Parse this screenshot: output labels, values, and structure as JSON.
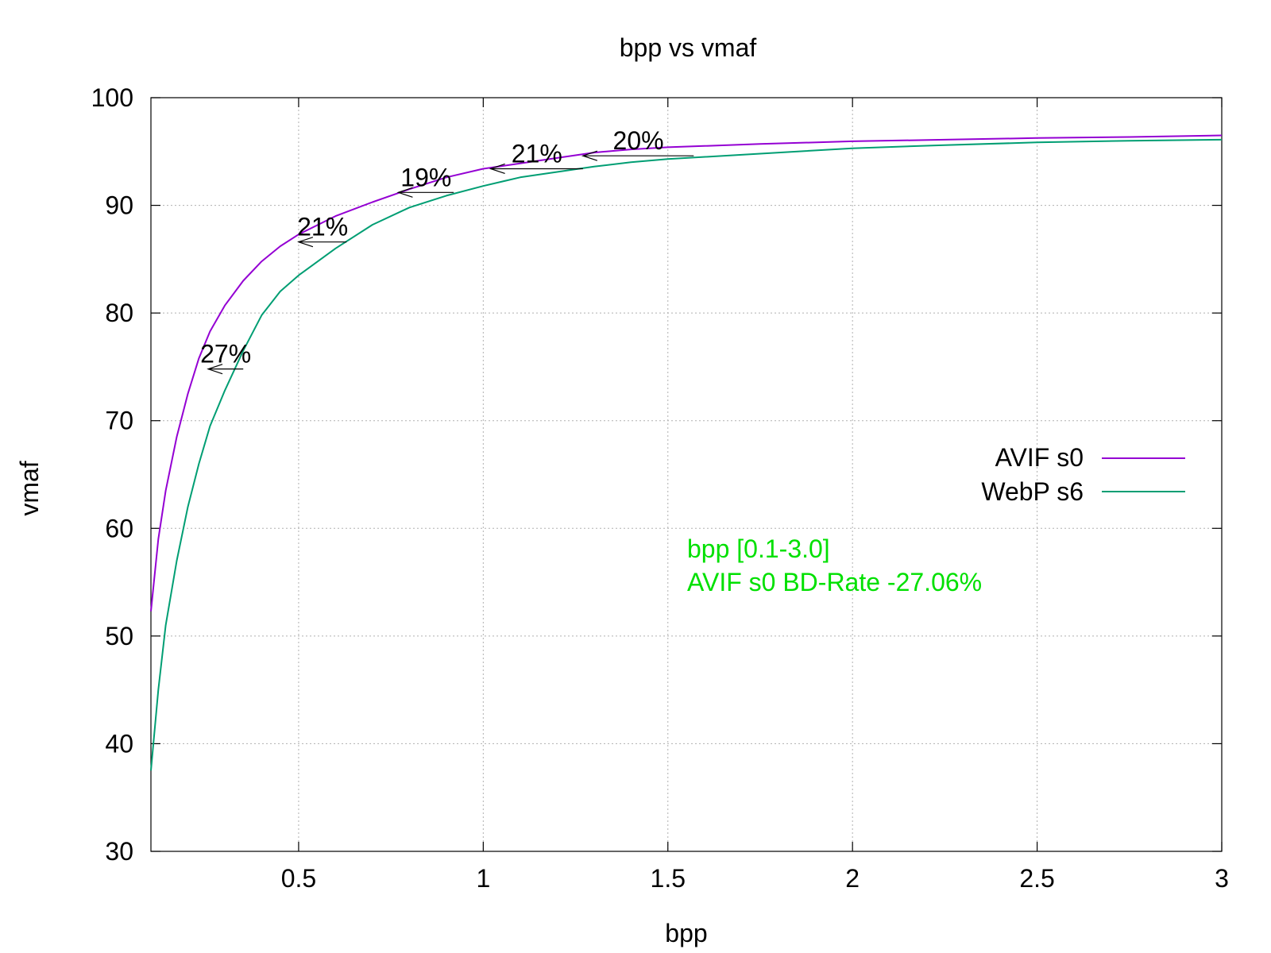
{
  "chart_data": {
    "type": "line",
    "title": "bpp vs vmaf",
    "xlabel": "bpp",
    "ylabel": "vmaf",
    "xlim": [
      0.1,
      3.0
    ],
    "ylim": [
      30,
      100
    ],
    "x_ticks": [
      0.5,
      1,
      1.5,
      2,
      2.5,
      3
    ],
    "x_tick_labels": [
      "0.5",
      "1",
      "1.5",
      "2",
      "2.5",
      "3"
    ],
    "y_ticks": [
      30,
      40,
      50,
      60,
      70,
      80,
      90,
      100
    ],
    "y_tick_labels": [
      "30",
      "40",
      "50",
      "60",
      "70",
      "80",
      "90",
      "100"
    ],
    "grid": true,
    "legend_position": "right",
    "series": [
      {
        "name": "AVIF s0",
        "color": "#9400d3",
        "points": [
          [
            0.1,
            52.3
          ],
          [
            0.12,
            59.0
          ],
          [
            0.14,
            63.5
          ],
          [
            0.17,
            68.5
          ],
          [
            0.2,
            72.5
          ],
          [
            0.23,
            75.8
          ],
          [
            0.26,
            78.3
          ],
          [
            0.3,
            80.7
          ],
          [
            0.35,
            83.0
          ],
          [
            0.4,
            84.8
          ],
          [
            0.45,
            86.2
          ],
          [
            0.5,
            87.3
          ],
          [
            0.6,
            89.0
          ],
          [
            0.7,
            90.3
          ],
          [
            0.8,
            91.5
          ],
          [
            0.9,
            92.6
          ],
          [
            1.0,
            93.4
          ],
          [
            1.1,
            93.9
          ],
          [
            1.2,
            94.4
          ],
          [
            1.3,
            94.9
          ],
          [
            1.4,
            95.2
          ],
          [
            1.5,
            95.4
          ],
          [
            1.75,
            95.7
          ],
          [
            2.0,
            95.95
          ],
          [
            2.25,
            96.1
          ],
          [
            2.5,
            96.25
          ],
          [
            2.75,
            96.35
          ],
          [
            3.0,
            96.5
          ]
        ]
      },
      {
        "name": "WebP s6",
        "color": "#009e73",
        "points": [
          [
            0.1,
            37.5
          ],
          [
            0.12,
            45.0
          ],
          [
            0.14,
            51.0
          ],
          [
            0.17,
            57.0
          ],
          [
            0.2,
            62.0
          ],
          [
            0.23,
            66.0
          ],
          [
            0.26,
            69.5
          ],
          [
            0.3,
            72.8
          ],
          [
            0.35,
            76.5
          ],
          [
            0.4,
            79.8
          ],
          [
            0.45,
            82.0
          ],
          [
            0.5,
            83.5
          ],
          [
            0.6,
            86.0
          ],
          [
            0.7,
            88.2
          ],
          [
            0.8,
            89.8
          ],
          [
            0.9,
            90.9
          ],
          [
            1.0,
            91.8
          ],
          [
            1.1,
            92.6
          ],
          [
            1.2,
            93.1
          ],
          [
            1.3,
            93.6
          ],
          [
            1.4,
            94.0
          ],
          [
            1.5,
            94.3
          ],
          [
            1.75,
            94.8
          ],
          [
            2.0,
            95.3
          ],
          [
            2.25,
            95.6
          ],
          [
            2.5,
            95.85
          ],
          [
            2.75,
            96.0
          ],
          [
            3.0,
            96.1
          ]
        ]
      }
    ],
    "arrows": [
      {
        "label": "27%",
        "y": 74.8,
        "x_from": 0.35,
        "x_to": 0.255
      },
      {
        "label": "21%",
        "y": 86.6,
        "x_from": 0.63,
        "x_to": 0.5
      },
      {
        "label": "19%",
        "y": 91.2,
        "x_from": 0.92,
        "x_to": 0.77
      },
      {
        "label": "21%",
        "y": 93.4,
        "x_from": 1.27,
        "x_to": 1.02
      },
      {
        "label": "20%",
        "y": 94.6,
        "x_from": 1.57,
        "x_to": 1.27
      }
    ],
    "annotations": [
      {
        "text": "bpp [0.1-3.0]",
        "color": "#00e000"
      },
      {
        "text": "AVIF s0 BD-Rate -27.06%",
        "color": "#00e000"
      }
    ]
  }
}
